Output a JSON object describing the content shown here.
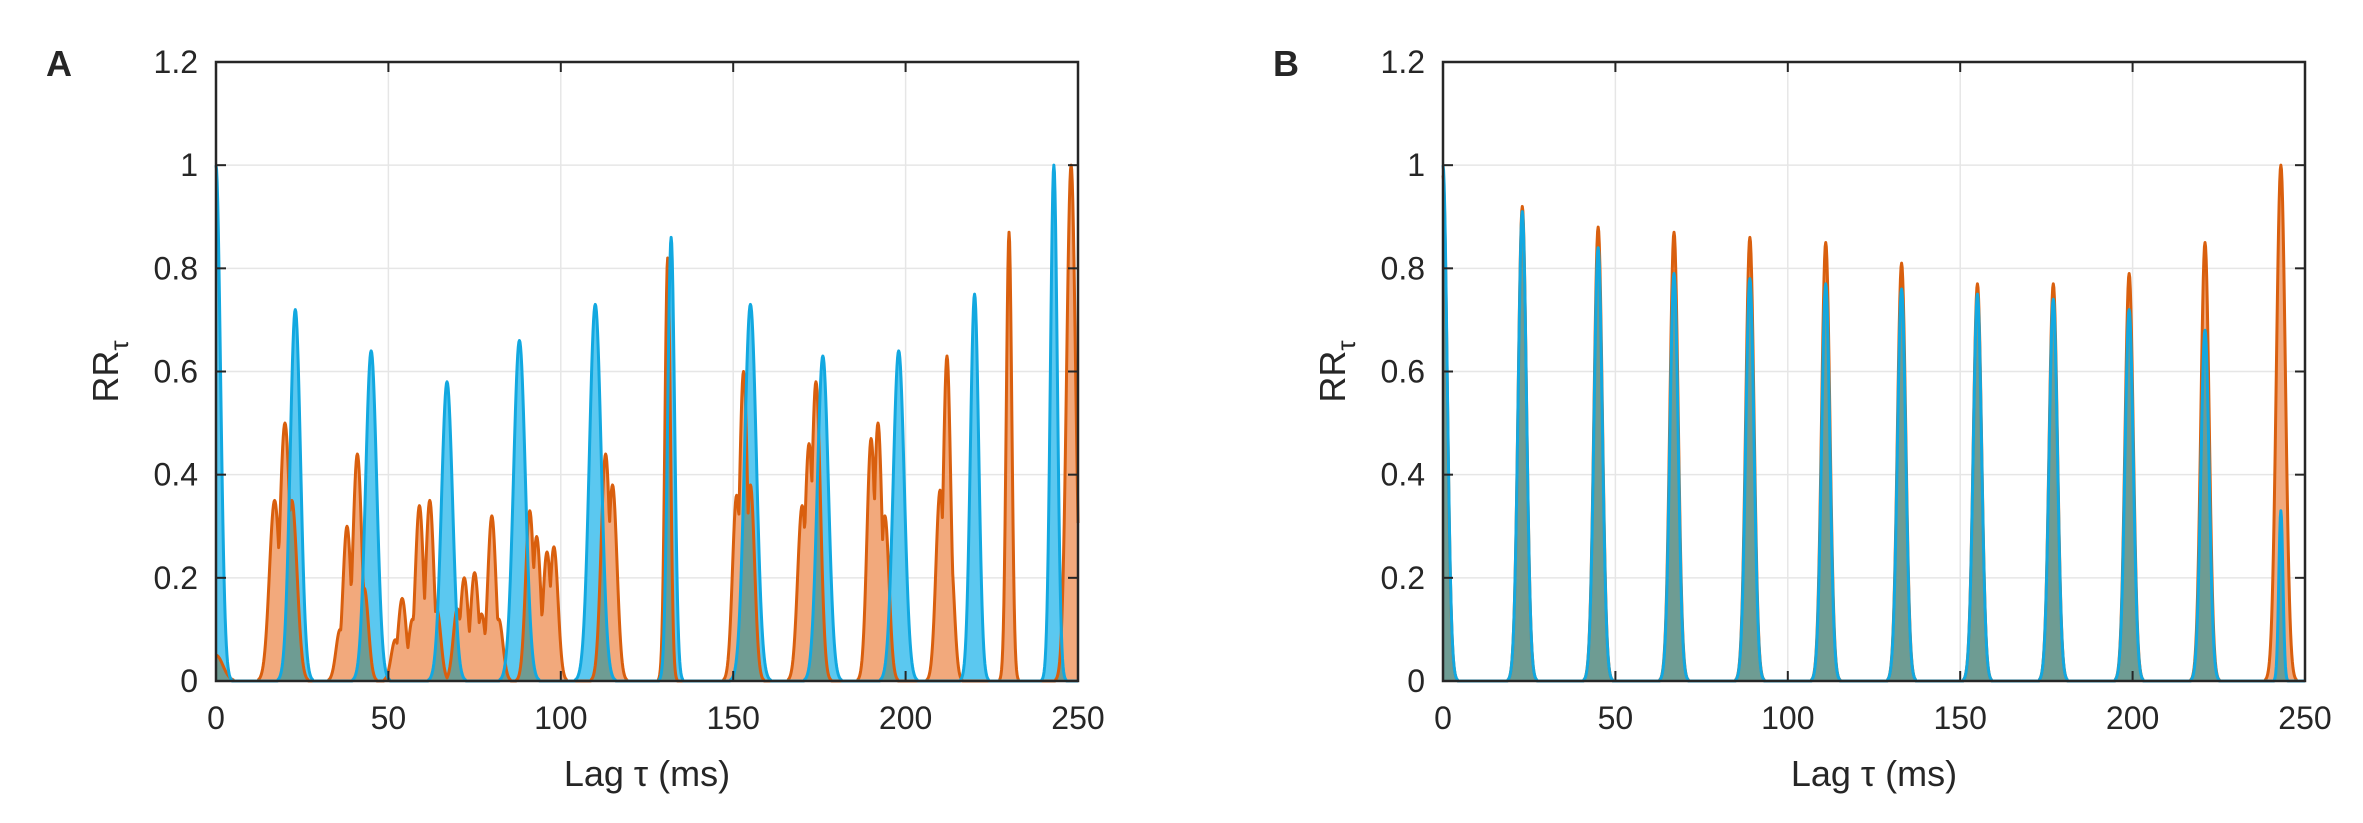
{
  "colors": {
    "orange": "#D95F0E",
    "orange_fill": "#F2A97C",
    "blue": "#12A8E0",
    "blue_fill": "#5BC8F0",
    "overlap_fill": "#6E9C93",
    "axis": "#262626",
    "grid": "#E6E6E6"
  },
  "chart_data": [
    {
      "panel_label": "A",
      "type": "area",
      "xlabel": "Lag τ (ms)",
      "ylabel": "RR",
      "ylabel_sub": "τ",
      "xlim": [
        0,
        250
      ],
      "ylim": [
        0,
        1.2
      ],
      "xticks": [
        "0",
        "50",
        "100",
        "150",
        "200",
        "250"
      ],
      "yticks": [
        "0",
        "0.2",
        "0.4",
        "0.6",
        "0.8",
        "1",
        "1.2"
      ],
      "grid": true,
      "series": [
        {
          "name": "orange",
          "peaks": [
            [
              0,
              0.05,
              2
            ],
            [
              17,
              0.35,
              1.5
            ],
            [
              20,
              0.5,
              1.5
            ],
            [
              22,
              0.35,
              1.5
            ],
            [
              36,
              0.1,
              1.2
            ],
            [
              38,
              0.3,
              1.2
            ],
            [
              41,
              0.44,
              1.3
            ],
            [
              43,
              0.18,
              1.2
            ],
            [
              52,
              0.08,
              1.2
            ],
            [
              54,
              0.16,
              1.2
            ],
            [
              57,
              0.12,
              1.2
            ],
            [
              59,
              0.34,
              1.2
            ],
            [
              62,
              0.35,
              1.2
            ],
            [
              64,
              0.14,
              1.2
            ],
            [
              70,
              0.14,
              1.2
            ],
            [
              72,
              0.2,
              1.2
            ],
            [
              75,
              0.21,
              1.2
            ],
            [
              77,
              0.13,
              1.2
            ],
            [
              80,
              0.32,
              1.2
            ],
            [
              82,
              0.12,
              1.2
            ],
            [
              91,
              0.33,
              1.2
            ],
            [
              93,
              0.28,
              1.2
            ],
            [
              96,
              0.25,
              1.2
            ],
            [
              98,
              0.26,
              1.2
            ],
            [
              113,
              0.44,
              1.3
            ],
            [
              115,
              0.38,
              1.3
            ],
            [
              131,
              0.82,
              0.8
            ],
            [
              151,
              0.36,
              1.2
            ],
            [
              153,
              0.6,
              1.2
            ],
            [
              155,
              0.38,
              1.2
            ],
            [
              170,
              0.34,
              1.3
            ],
            [
              172,
              0.46,
              1.3
            ],
            [
              174,
              0.58,
              1.3
            ],
            [
              190,
              0.47,
              1.2
            ],
            [
              192,
              0.5,
              1.2
            ],
            [
              194,
              0.32,
              1.2
            ],
            [
              210,
              0.37,
              1.2
            ],
            [
              212,
              0.63,
              1.1
            ],
            [
              213,
              0.25,
              1.1
            ],
            [
              230,
              0.87,
              0.8
            ],
            [
              248,
              1.0,
              1.3
            ]
          ]
        },
        {
          "name": "blue",
          "peaks": [
            [
              0,
              1.0,
              1.3
            ],
            [
              23,
              0.72,
              1.5
            ],
            [
              45,
              0.64,
              1.6
            ],
            [
              67,
              0.58,
              1.6
            ],
            [
              88,
              0.66,
              1.7
            ],
            [
              110,
              0.73,
              1.7
            ],
            [
              132,
              0.86,
              1.0
            ],
            [
              155,
              0.73,
              1.7
            ],
            [
              176,
              0.63,
              1.6
            ],
            [
              198,
              0.64,
              1.6
            ],
            [
              220,
              0.75,
              1.2
            ],
            [
              243,
              1.0,
              1.0
            ]
          ]
        }
      ]
    },
    {
      "panel_label": "B",
      "type": "area",
      "xlabel": "Lag τ (ms)",
      "ylabel": "RR",
      "ylabel_sub": "τ",
      "xlim": [
        0,
        250
      ],
      "ylim": [
        0,
        1.2
      ],
      "xticks": [
        "0",
        "50",
        "100",
        "150",
        "200",
        "250"
      ],
      "yticks": [
        "0",
        "0.2",
        "0.4",
        "0.6",
        "0.8",
        "1",
        "1.2"
      ],
      "grid": true,
      "series": [
        {
          "name": "orange",
          "peaks": [
            [
              0,
              0.98,
              1.2
            ],
            [
              23,
              0.92,
              1.2
            ],
            [
              45,
              0.88,
              1.2
            ],
            [
              67,
              0.87,
              1.2
            ],
            [
              89,
              0.86,
              1.2
            ],
            [
              111,
              0.85,
              1.2
            ],
            [
              133,
              0.81,
              1.2
            ],
            [
              155,
              0.77,
              1.2
            ],
            [
              177,
              0.77,
              1.2
            ],
            [
              199,
              0.79,
              1.2
            ],
            [
              221,
              0.85,
              1.2
            ],
            [
              243,
              1.0,
              1.3
            ]
          ]
        },
        {
          "name": "blue",
          "peaks": [
            [
              0,
              1.0,
              1.2
            ],
            [
              23,
              0.91,
              1.2
            ],
            [
              45,
              0.84,
              1.2
            ],
            [
              67,
              0.79,
              1.2
            ],
            [
              89,
              0.78,
              1.2
            ],
            [
              111,
              0.77,
              1.2
            ],
            [
              133,
              0.76,
              1.2
            ],
            [
              155,
              0.75,
              1.2
            ],
            [
              177,
              0.74,
              1.2
            ],
            [
              199,
              0.72,
              1.2
            ],
            [
              221,
              0.68,
              1.2
            ],
            [
              243,
              0.33,
              0.6
            ]
          ]
        }
      ]
    }
  ]
}
